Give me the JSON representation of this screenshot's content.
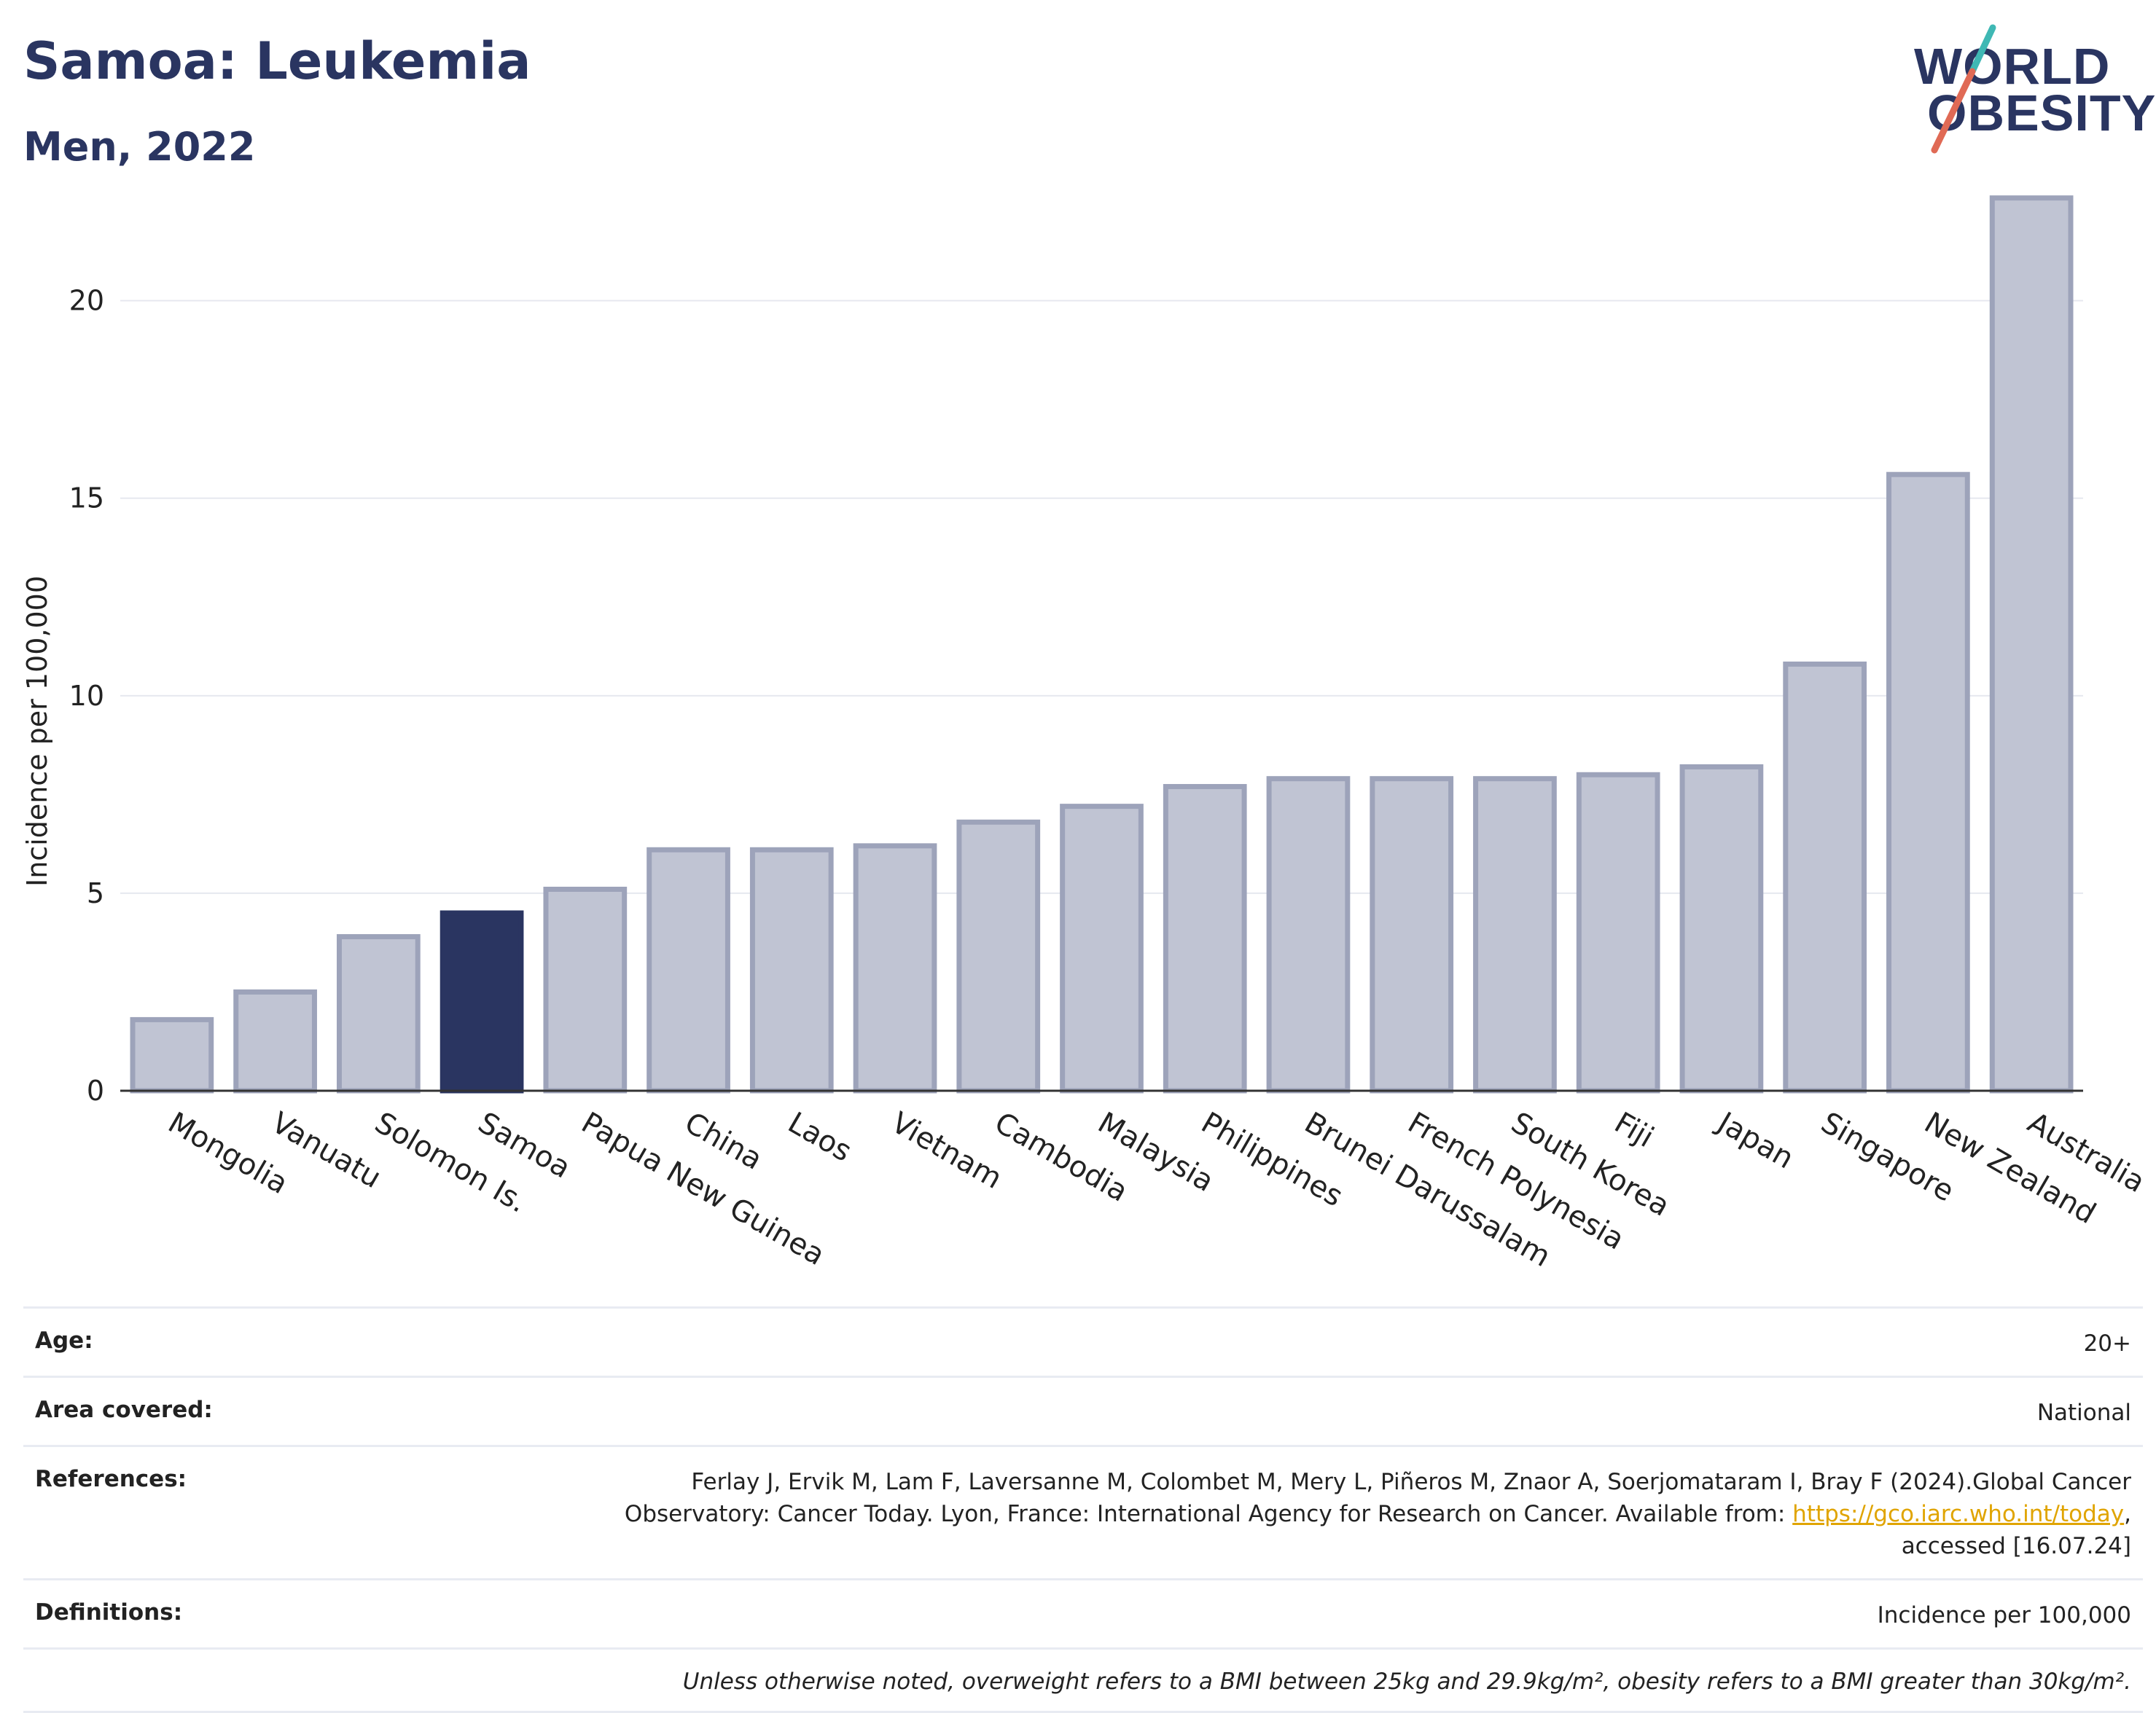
{
  "header": {
    "title": "Samoa: Leukemia",
    "subtitle": "Men, 2022",
    "logo_line1": "WORLD",
    "logo_line2": "OBESITY"
  },
  "colors": {
    "highlight": "#2a3561",
    "bar_fill": "#c0c4d3",
    "bar_stroke": "#9da3ba",
    "slash_teal": "#3fb8b4",
    "slash_red": "#e06a55"
  },
  "chart_data": {
    "type": "bar",
    "ylabel": "Incidence per 100,000",
    "ylim": [
      0,
      23
    ],
    "yticks": [
      0,
      5,
      10,
      15,
      20
    ],
    "grid": true,
    "highlight": "Samoa",
    "categories": [
      "Mongolia",
      "Vanuatu",
      "Solomon Is.",
      "Samoa",
      "Papua New Guinea",
      "China",
      "Laos",
      "Vietnam",
      "Cambodia",
      "Malaysia",
      "Philippines",
      "Brunei Darussalam",
      "French Polynesia",
      "South Korea",
      "Fiji",
      "Japan",
      "Singapore",
      "New Zealand",
      "Australia"
    ],
    "values": [
      1.8,
      2.5,
      3.9,
      4.5,
      5.1,
      6.1,
      6.1,
      6.2,
      6.8,
      7.2,
      7.7,
      7.9,
      7.9,
      7.9,
      8.0,
      8.2,
      10.8,
      15.6,
      22.6
    ]
  },
  "meta": {
    "rows": [
      {
        "label": "Age:",
        "value": "20+"
      },
      {
        "label": "Area covered:",
        "value": "National"
      },
      {
        "label": "References:",
        "value_before_link": "Ferlay J, Ervik M, Lam F, Laversanne M, Colombet M, Mery L, Piñeros M, Znaor A, Soerjomataram I, Bray F (2024).Global Cancer Observatory: Cancer Today. Lyon, France: International Agency for Research on Cancer. Available from: ",
        "link": "https://gco.iarc.who.int/today",
        "value_after_link": ", accessed [16.07.24]"
      },
      {
        "label": "Definitions:",
        "value": "Incidence per 100,000"
      }
    ],
    "note": "Unless otherwise noted, overweight refers to a BMI between 25kg and 29.9kg/m², obesity refers to a BMI greater than 30kg/m²."
  }
}
